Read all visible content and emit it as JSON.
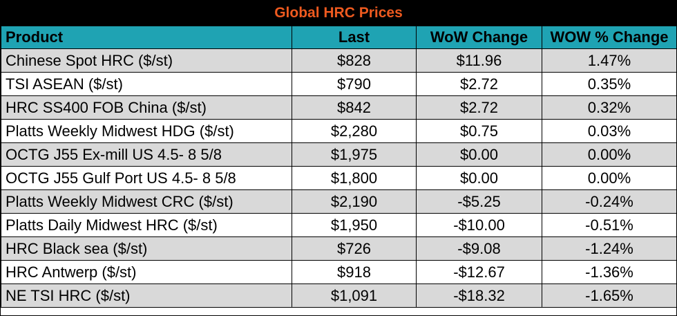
{
  "title": "Global HRC Prices",
  "colors": {
    "title_bg": "#000000",
    "title_text": "#ee5a1f",
    "header_bg": "#1fa3b3",
    "row_shade": "#d9d9d9",
    "row_plain": "#ffffff"
  },
  "chart_data": {
    "type": "table",
    "title": "Global HRC Prices",
    "columns": [
      "Product",
      "Last",
      "WoW Change",
      "WOW % Change"
    ],
    "rows": [
      [
        "Chinese Spot HRC ($/st)",
        "$828",
        "$11.96",
        "1.47%"
      ],
      [
        "TSI ASEAN ($/st)",
        "$790",
        "$2.72",
        "0.35%"
      ],
      [
        "HRC SS400 FOB China ($/st)",
        "$842",
        "$2.72",
        "0.32%"
      ],
      [
        "Platts Weekly Midwest HDG ($/st)",
        "$2,280",
        "$0.75",
        "0.03%"
      ],
      [
        "OCTG J55 Ex-mill US 4.5- 8 5/8",
        "$1,975",
        "$0.00",
        "0.00%"
      ],
      [
        "OCTG J55 Gulf Port US 4.5- 8 5/8",
        "$1,800",
        "$0.00",
        "0.00%"
      ],
      [
        "Platts Weekly Midwest CRC ($/st)",
        "$2,190",
        "-$5.25",
        "-0.24%"
      ],
      [
        "Platts Daily Midwest HRC ($/st)",
        "$1,950",
        "-$10.00",
        "-0.51%"
      ],
      [
        "HRC Black sea ($/st)",
        "$726",
        "-$9.08",
        "-1.24%"
      ],
      [
        "HRC Antwerp ($/st)",
        "$918",
        "-$12.67",
        "-1.36%"
      ],
      [
        "NE TSI HRC ($/st)",
        "$1,091",
        "-$18.32",
        "-1.65%"
      ]
    ]
  }
}
